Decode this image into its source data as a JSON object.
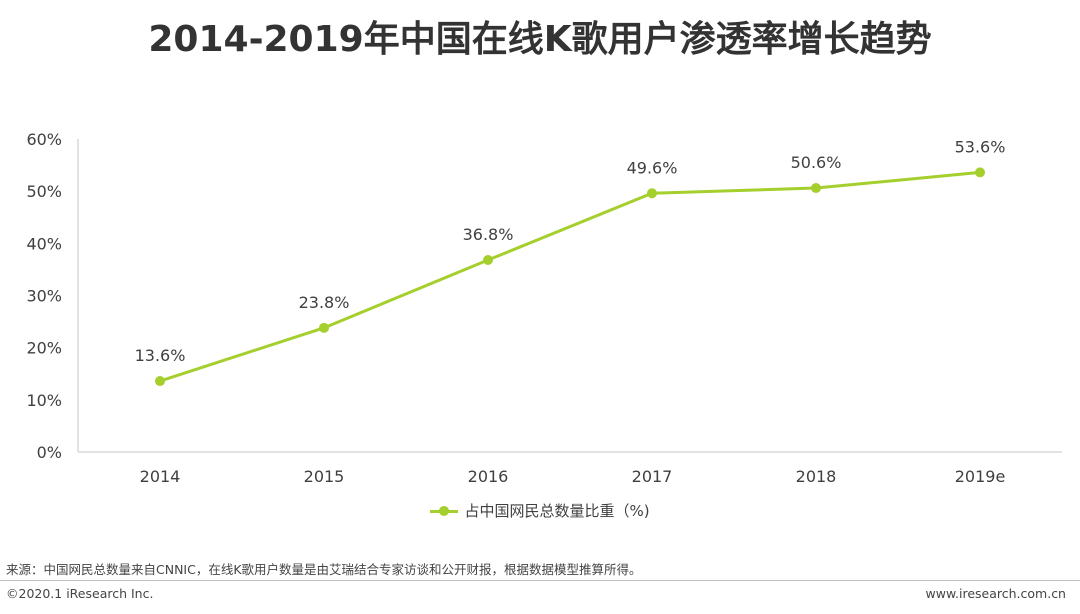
{
  "page": {
    "title": "2014-2019年中国在线K歌用户渗透率增长趋势",
    "source_note": "来源：中国网民总数量来自CNNIC，在线K歌用户数量是由艾瑞结合专家访谈和公开财报，根据数据模型推算所得。",
    "copyright": "©2020.1 iResearch Inc.",
    "website": "www.iresearch.com.cn"
  },
  "colors": {
    "series": "#a4cf2d",
    "axis": "#d9d9d9",
    "text": "#404040"
  },
  "chart_data": {
    "type": "line",
    "categories": [
      "2014",
      "2015",
      "2016",
      "2017",
      "2018",
      "2019e"
    ],
    "series": [
      {
        "name": "占中国网民总数量比重（%)",
        "values": [
          13.6,
          23.8,
          36.8,
          49.6,
          50.6,
          53.6
        ],
        "labels": [
          "13.6%",
          "23.8%",
          "36.8%",
          "49.6%",
          "50.6%",
          "53.6%"
        ]
      }
    ],
    "y_ticks": [
      "0%",
      "10%",
      "20%",
      "30%",
      "40%",
      "50%",
      "60%"
    ],
    "ylim": [
      0,
      60
    ],
    "legend_position": "bottom-center",
    "grid": false
  }
}
